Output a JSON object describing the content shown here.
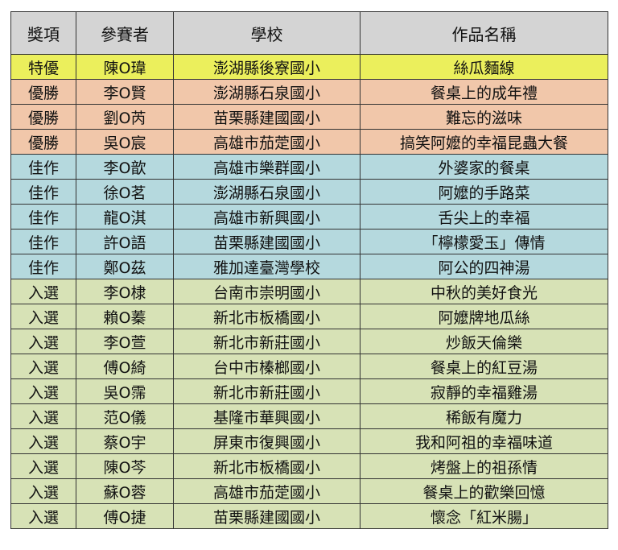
{
  "colors": {
    "header": "#d4d4d4",
    "特優": "#ebef5c",
    "優勝": "#f1c7aa",
    "佳作": "#b5d9de",
    "入選": "#d7e2b6"
  },
  "headers": [
    "獎項",
    "參賽者",
    "學校",
    "作品名稱"
  ],
  "rows": [
    [
      "特優",
      "陳O瑋",
      "澎湖縣後寮國小",
      "絲瓜麵線"
    ],
    [
      "優勝",
      "李O賢",
      "澎湖縣石泉國小",
      "餐桌上的成年禮"
    ],
    [
      "優勝",
      "劉O芮",
      "苗栗縣建國國小",
      "難忘的滋味"
    ],
    [
      "優勝",
      "吳O宸",
      "高雄市茄萣國小",
      "搞笑阿嬤的幸福昆蟲大餐"
    ],
    [
      "佳作",
      "李O歆",
      "高雄市樂群國小",
      "外婆家的餐桌"
    ],
    [
      "佳作",
      "徐O茗",
      "澎湖縣石泉國小",
      "阿嬤的手路菜"
    ],
    [
      "佳作",
      "龍O淇",
      "高雄市新興國小",
      "舌尖上的幸福"
    ],
    [
      "佳作",
      "許O語",
      "苗栗縣建國國小",
      "「檸檬愛玉」傳情"
    ],
    [
      "佳作",
      "鄭O茲",
      "雅加達臺灣學校",
      "阿公的四神湯"
    ],
    [
      "入選",
      "李O棣",
      "台南市崇明國小",
      "中秋的美好食光"
    ],
    [
      "入選",
      "賴O蓁",
      "新北市板橋國小",
      "阿嬤牌地瓜絲"
    ],
    [
      "入選",
      "李O萱",
      "新北市新莊國小",
      "炒飯天倫樂"
    ],
    [
      "入選",
      "傅O綺",
      "台中市榛榔國小",
      "餐桌上的紅豆湯"
    ],
    [
      "入選",
      "吳O霈",
      "新北市新莊國小",
      "寂靜的幸福雞湯"
    ],
    [
      "入選",
      "范O儀",
      "基隆市華興國小",
      "稀飯有魔力"
    ],
    [
      "入選",
      "蔡O宇",
      "屏東市復興國小",
      "我和阿祖的幸福味道"
    ],
    [
      "入選",
      "陳O芩",
      "新北市板橋國小",
      "烤盤上的祖孫情"
    ],
    [
      "入選",
      "蘇O蓉",
      "高雄市茄萣國小",
      "餐桌上的歡樂回憶"
    ],
    [
      "入選",
      "傅O捷",
      "苗栗縣建國國小",
      "懷念「紅米腸」"
    ]
  ]
}
